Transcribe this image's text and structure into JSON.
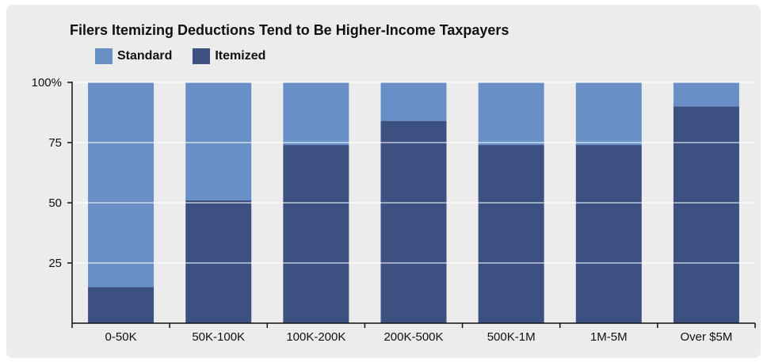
{
  "colors": {
    "standard": "#6990c6",
    "itemized": "#3c5182",
    "background": "#ececec",
    "gridline": "#ffffff",
    "axis": "#111111"
  },
  "chart_data": {
    "type": "bar",
    "stacked": true,
    "title": "Filers Itemizing Deductions Tend to Be Higher-Income Taxpayers",
    "xlabel": "",
    "ylabel": "",
    "ylim": [
      0,
      100
    ],
    "yticks": [
      25,
      50,
      75,
      100
    ],
    "ytick_labels": [
      "25",
      "50",
      "75",
      "100%"
    ],
    "grid": true,
    "legend_position": "top-left",
    "categories": [
      "0-50K",
      "50K-100K",
      "100K-200K",
      "200K-500K",
      "500K-1M",
      "1M-5M",
      "Over $5M"
    ],
    "series": [
      {
        "name": "Itemized",
        "values": [
          15,
          51,
          74,
          84,
          74,
          74,
          90
        ]
      },
      {
        "name": "Standard",
        "values": [
          85,
          49,
          26,
          16,
          26,
          26,
          10
        ]
      }
    ]
  }
}
